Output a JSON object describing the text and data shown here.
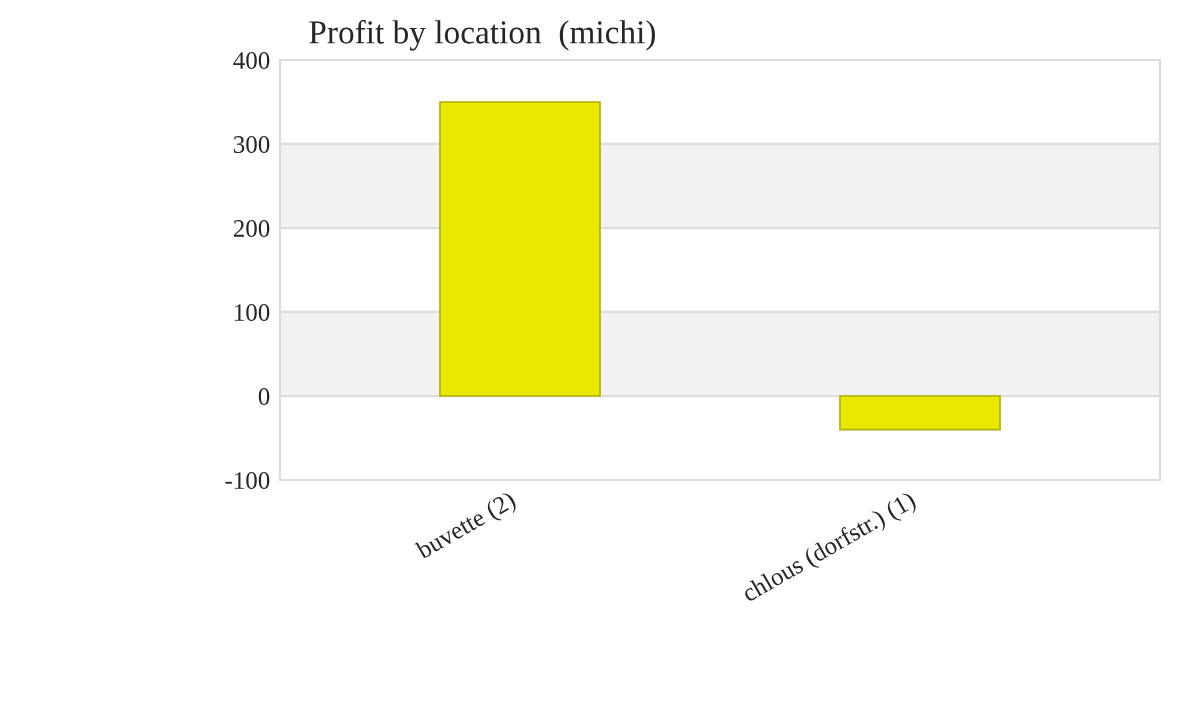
{
  "chart_data": {
    "type": "bar",
    "title": "Profit by location  (michi)",
    "categories": [
      "buvette (2)",
      "chlous (dorfstr.) (1)"
    ],
    "values": [
      350,
      -40
    ],
    "color": "#e8e800",
    "ylim": [
      -100,
      400
    ],
    "yticks": [
      -100,
      0,
      100,
      200,
      300,
      400
    ],
    "grid": "y"
  }
}
